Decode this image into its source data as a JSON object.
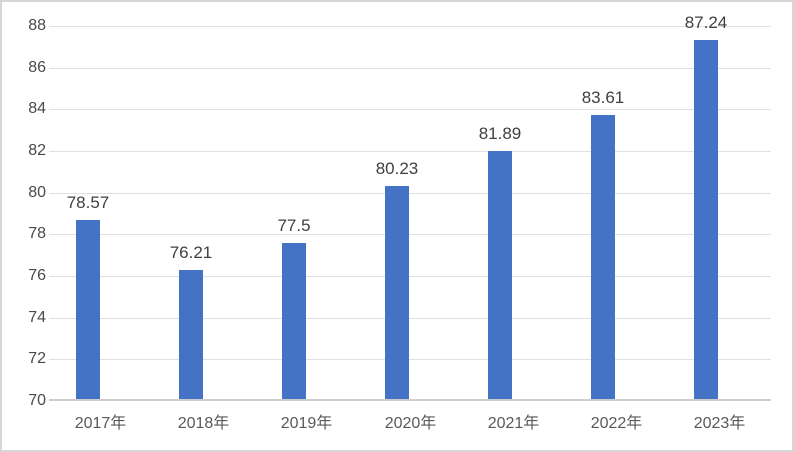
{
  "chart_data": {
    "type": "bar",
    "title": "",
    "xlabel": "",
    "ylabel": "",
    "categories": [
      "2017年",
      "2018年",
      "2019年",
      "2020年",
      "2021年",
      "2022年",
      "2023年"
    ],
    "values": [
      78.57,
      76.21,
      77.5,
      80.23,
      81.89,
      83.61,
      87.24
    ],
    "data_labels": [
      "78.57",
      "76.21",
      "77.5",
      "80.23",
      "81.89",
      "83.61",
      "87.24"
    ],
    "ylim": [
      70,
      88
    ],
    "ytick_step": 2,
    "yticks": [
      70,
      72,
      74,
      76,
      78,
      80,
      82,
      84,
      86,
      88
    ],
    "grid": true,
    "legend": "none",
    "colors": {
      "bar": "#4472c4",
      "gridline": "#e0e0e0",
      "axis_line": "#cdcdcd",
      "y_tick_label": "#4a4a4a",
      "x_tick_label": "#595959",
      "data_label": "#404040",
      "frame_border": "#d6d6d6",
      "background": "#ffffff"
    }
  }
}
